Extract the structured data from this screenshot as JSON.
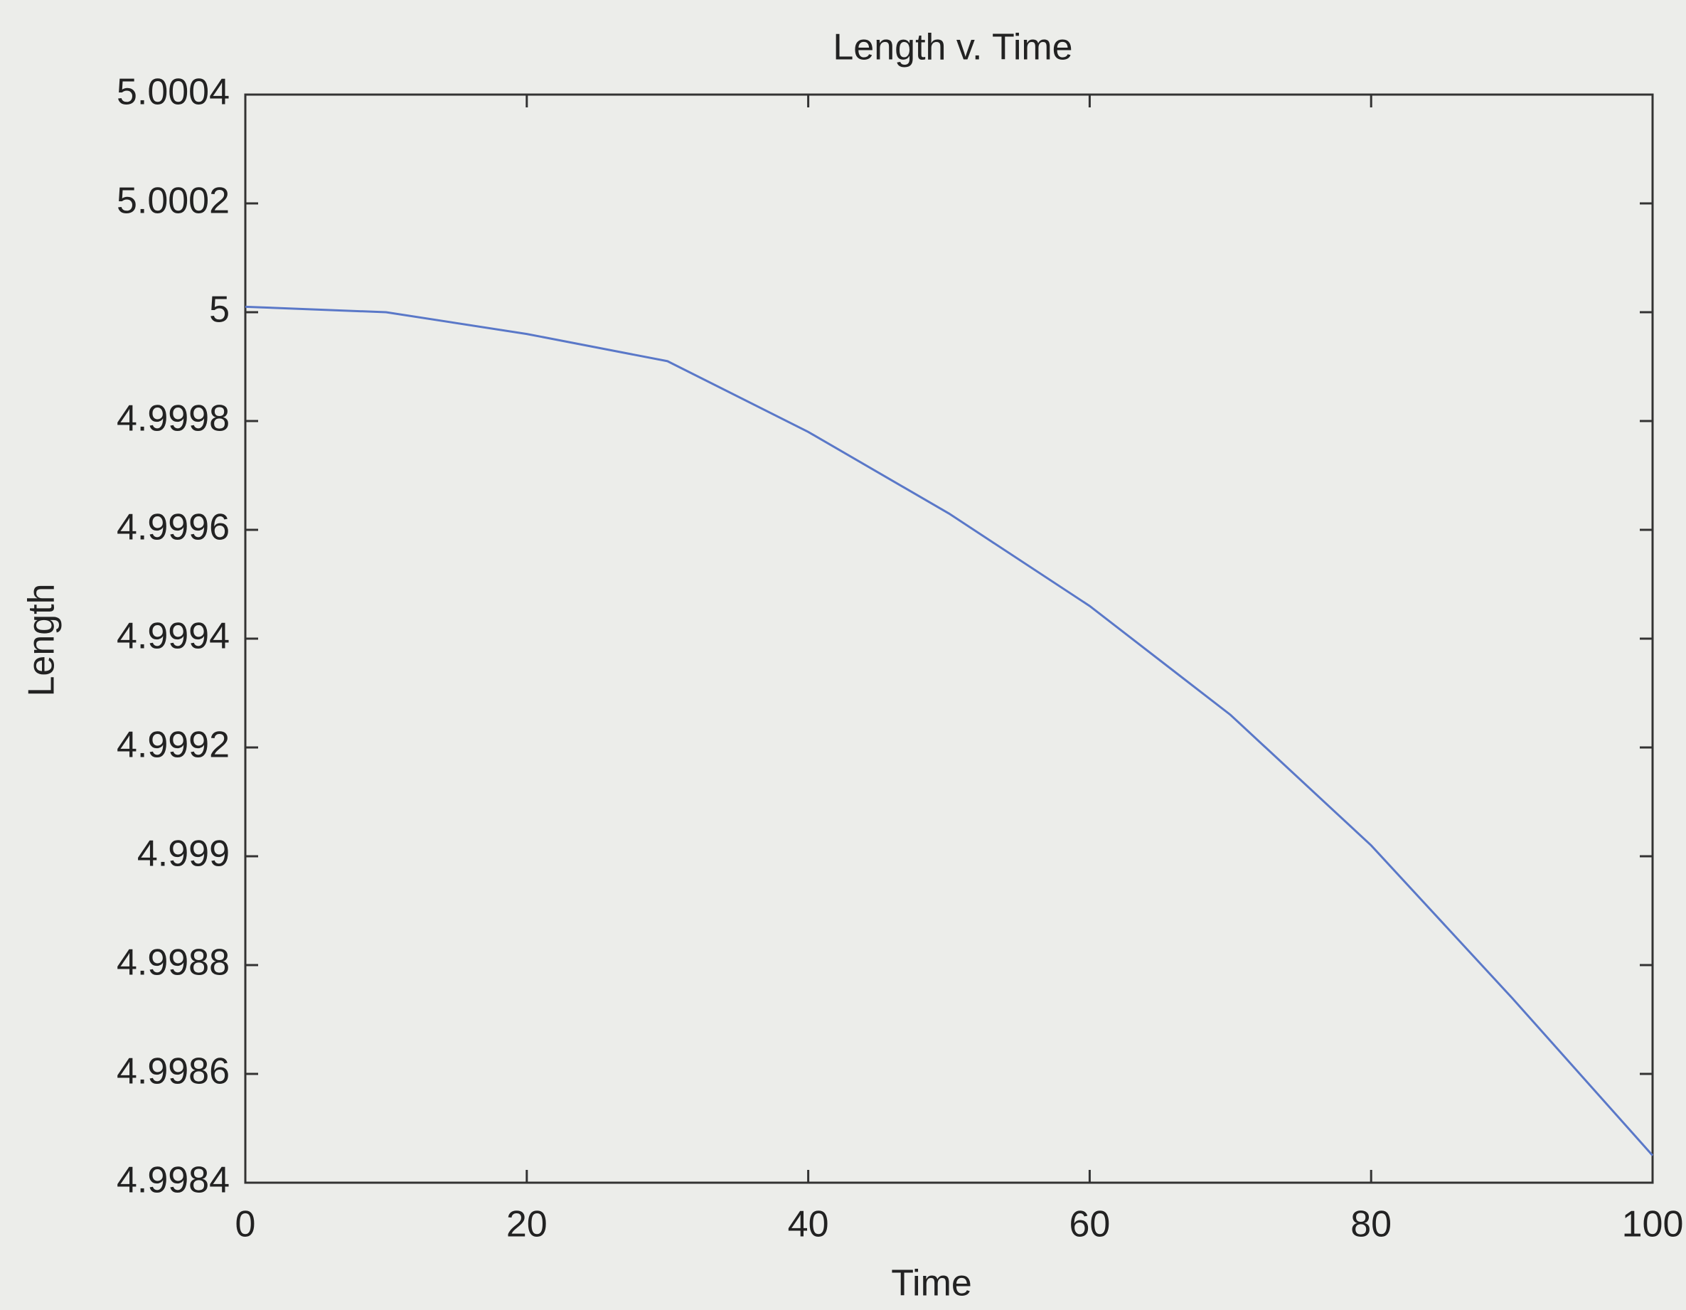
{
  "chart_data": {
    "type": "line",
    "title": "Length v. Time",
    "x_label": "Time",
    "y_label": "Length",
    "x": [
      0,
      10,
      20,
      30,
      40,
      50,
      60,
      70,
      80,
      90,
      100
    ],
    "series": [
      {
        "name": "Length",
        "color": "#5a78c8",
        "values": [
          5.00001,
          5.0,
          4.99996,
          4.99991,
          4.99978,
          4.99963,
          4.99946,
          4.99926,
          4.99902,
          4.99874,
          4.99845
        ]
      }
    ],
    "xlim": [
      0,
      100
    ],
    "xticks": [
      0,
      20,
      40,
      60,
      80,
      100
    ],
    "ylim": [
      4.9984,
      5.0004
    ],
    "yticks": [
      4.9984,
      4.9986,
      4.9988,
      4.999,
      4.9992,
      4.9994,
      4.9996,
      4.9998,
      5,
      5.0002,
      5.0004
    ],
    "grid": false
  }
}
